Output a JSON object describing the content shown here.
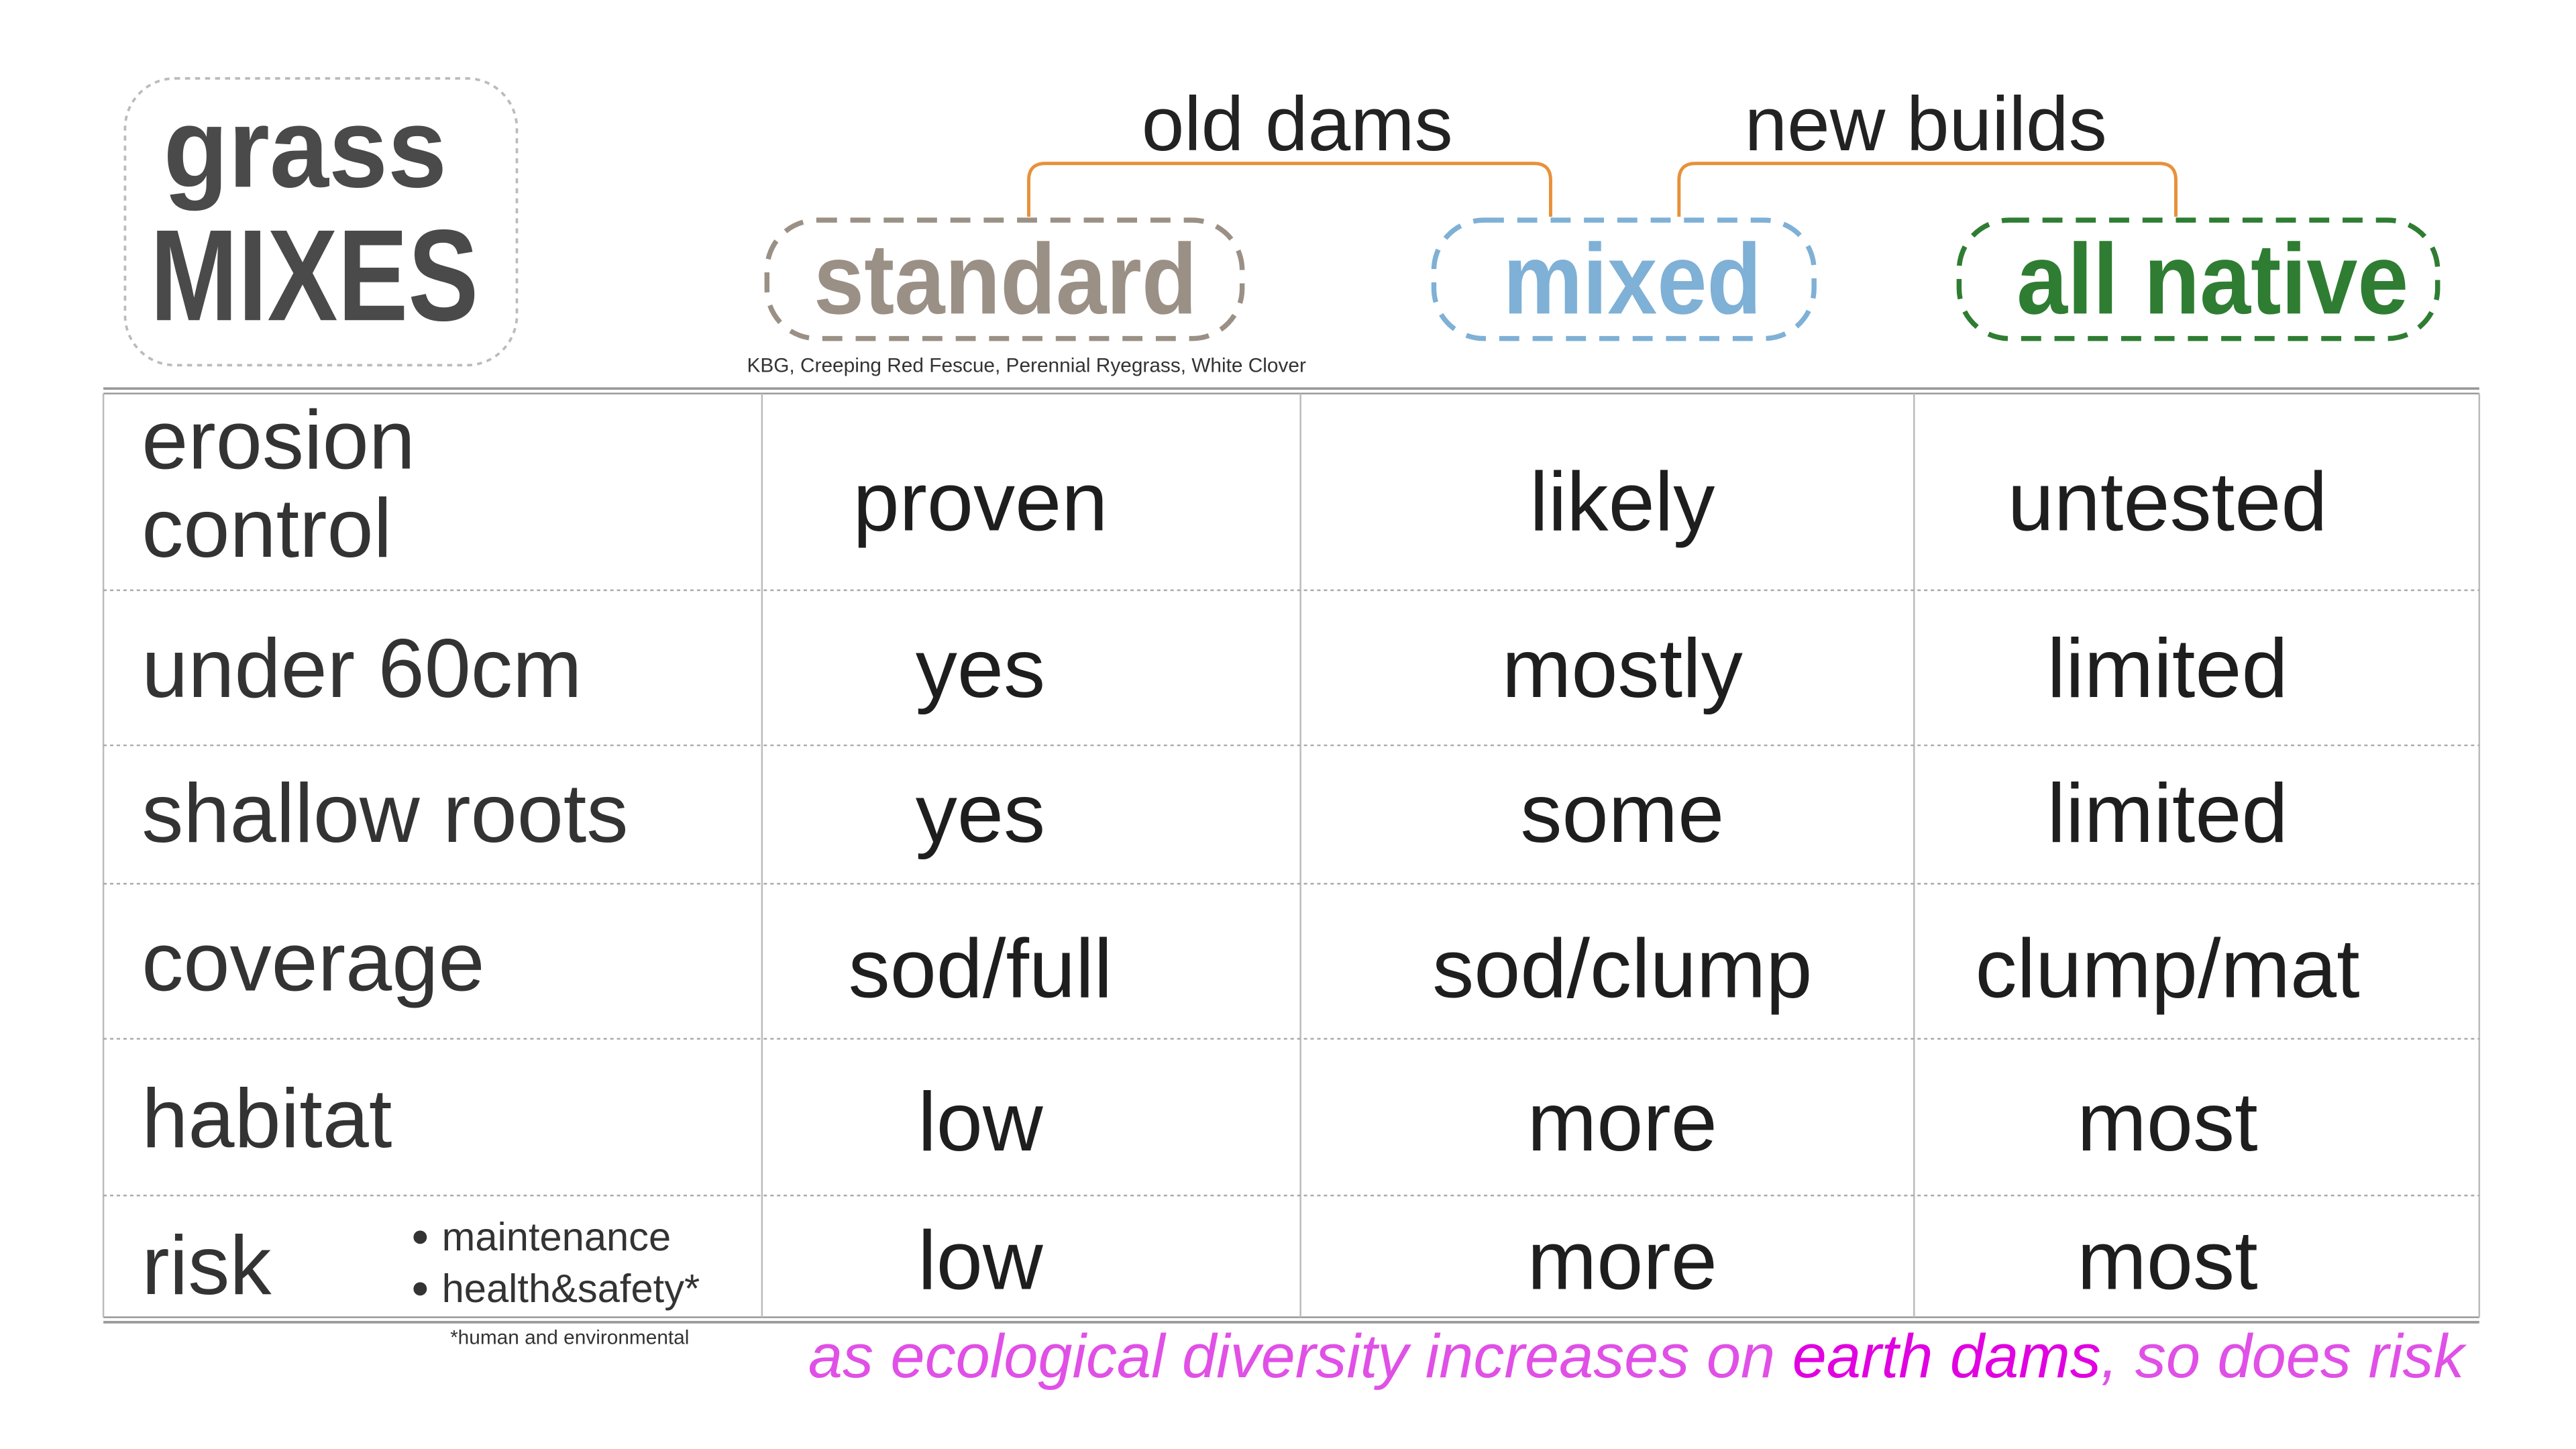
{
  "title": {
    "line1": "grass",
    "line2": "MIXES"
  },
  "groups": [
    {
      "label": "old dams"
    },
    {
      "label": "new builds"
    }
  ],
  "columns": [
    {
      "label": "standard",
      "note": "KBG, Creeping Red Fescue, Perennial Ryegrass, White Clover"
    },
    {
      "label": "mixed"
    },
    {
      "label": "all native"
    }
  ],
  "rows": [
    {
      "label": [
        "erosion",
        "control"
      ],
      "cells": [
        "proven",
        "likely",
        "untested"
      ]
    },
    {
      "label": [
        "under 60cm"
      ],
      "cells": [
        "yes",
        "mostly",
        "limited"
      ]
    },
    {
      "label": [
        "shallow roots"
      ],
      "cells": [
        "yes",
        "some",
        "limited"
      ]
    },
    {
      "label": [
        "coverage"
      ],
      "cells": [
        "sod/full",
        "sod/clump",
        "clump/mat"
      ]
    },
    {
      "label": [
        "habitat"
      ],
      "cells": [
        "low",
        "more",
        "most"
      ]
    },
    {
      "label": [
        "risk"
      ],
      "notes": [
        "maintenance",
        "health&safety*"
      ],
      "cells": [
        "low",
        "more",
        "most"
      ]
    }
  ],
  "footnote": "*human and environmental",
  "caption": [
    "as ecological diversity increases on ",
    "earth dams",
    ", so does risk"
  ]
}
